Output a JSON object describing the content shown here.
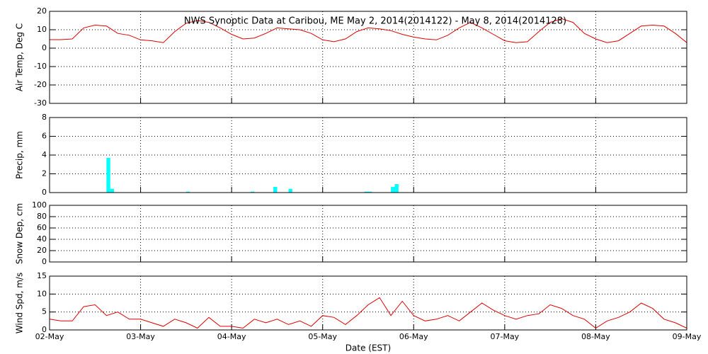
{
  "chart_data": [
    {
      "type": "line",
      "title": "NWS Synoptic Data at Caribou, ME   May  2, 2014(2014122) - May  8, 2014(2014128)",
      "ylabel": "Air Temp, Deg C",
      "color": "#e00000",
      "x": [
        0,
        3,
        6,
        9,
        12,
        15,
        18,
        21,
        24,
        27,
        30,
        33,
        36,
        39,
        42,
        45,
        48,
        51,
        54,
        57,
        60,
        63,
        66,
        69,
        72,
        75,
        78,
        81,
        84,
        87,
        90,
        93,
        96,
        99,
        102,
        105,
        108,
        111,
        114,
        117,
        120,
        123,
        126,
        129,
        132,
        135,
        138,
        141,
        144,
        147,
        150,
        153,
        156,
        159,
        162,
        165,
        168
      ],
      "values": [
        4.6,
        4.6,
        5,
        11,
        12.5,
        12,
        8,
        7,
        4.5,
        4,
        3,
        9,
        13.5,
        15,
        14,
        11,
        7.5,
        5,
        5.5,
        8,
        11,
        10.5,
        10,
        8,
        4.5,
        3.5,
        5,
        9,
        11,
        10.5,
        9.5,
        7.5,
        6,
        5,
        4.5,
        7,
        11,
        14,
        11,
        7.5,
        4,
        3,
        3.5,
        9,
        14,
        16,
        14,
        8,
        5,
        3,
        4,
        8,
        12,
        12.5,
        12,
        8,
        3
      ],
      "xlim": [
        0,
        168
      ],
      "ylim": [
        -30,
        20
      ],
      "yticks": [
        -30,
        -20,
        -10,
        0,
        10,
        20
      ],
      "grid": true
    },
    {
      "type": "bar",
      "ylabel": "Precip, mm",
      "color": "#00ffff",
      "x": [
        15,
        16,
        36,
        53,
        59,
        63,
        83,
        84,
        90,
        91
      ],
      "values": [
        3.7,
        0.4,
        0.1,
        0.1,
        0.6,
        0.4,
        0.1,
        0.1,
        0.6,
        0.9
      ],
      "xlim": [
        0,
        168
      ],
      "ylim": [
        0,
        8
      ],
      "yticks": [
        0,
        2,
        4,
        6,
        8
      ],
      "grid": true
    },
    {
      "type": "line",
      "ylabel": "Snow Dep, cm",
      "color": "#e00000",
      "xlim": [
        0,
        168
      ],
      "ylim": [
        0,
        100
      ],
      "yticks": [
        0,
        20,
        40,
        60,
        80,
        100
      ],
      "grid": true
    },
    {
      "type": "line",
      "ylabel": "Wind Spd, m/s",
      "xlabel": "Date (EST)",
      "color": "#e00000",
      "x": [
        0,
        3,
        6,
        9,
        12,
        15,
        18,
        21,
        24,
        27,
        30,
        33,
        36,
        39,
        42,
        45,
        48,
        51,
        54,
        57,
        60,
        63,
        66,
        69,
        72,
        75,
        78,
        81,
        84,
        87,
        90,
        93,
        96,
        99,
        102,
        105,
        108,
        111,
        114,
        117,
        120,
        123,
        126,
        129,
        132,
        135,
        138,
        141,
        144,
        147,
        150,
        153,
        156,
        159,
        162,
        165,
        168
      ],
      "values": [
        3,
        2.5,
        2.5,
        6.5,
        7,
        4,
        5,
        3,
        3,
        2,
        1,
        3,
        2,
        0.5,
        3.5,
        1,
        1,
        0.5,
        3,
        2,
        3,
        1.5,
        2.5,
        1,
        4,
        3.5,
        1.5,
        4,
        7,
        9,
        4,
        8,
        4,
        2.5,
        3,
        4,
        2.5,
        5,
        7.5,
        5.5,
        4,
        3,
        4,
        4.5,
        7,
        6,
        4,
        3,
        0.5,
        2.5,
        3.5,
        5,
        7.5,
        6,
        3,
        2,
        0.5
      ],
      "xlim": [
        0,
        168
      ],
      "ylim": [
        0,
        15
      ],
      "yticks": [
        0,
        5,
        10,
        15
      ],
      "grid": true,
      "xticks": [
        {
          "value": 0,
          "label": "02-May"
        },
        {
          "value": 24,
          "label": "03-May"
        },
        {
          "value": 48,
          "label": "04-May"
        },
        {
          "value": 72,
          "label": "05-May"
        },
        {
          "value": 96,
          "label": "06-May"
        },
        {
          "value": 120,
          "label": "07-May"
        },
        {
          "value": 144,
          "label": "08-May"
        },
        {
          "value": 168,
          "label": "09-May"
        }
      ]
    }
  ]
}
